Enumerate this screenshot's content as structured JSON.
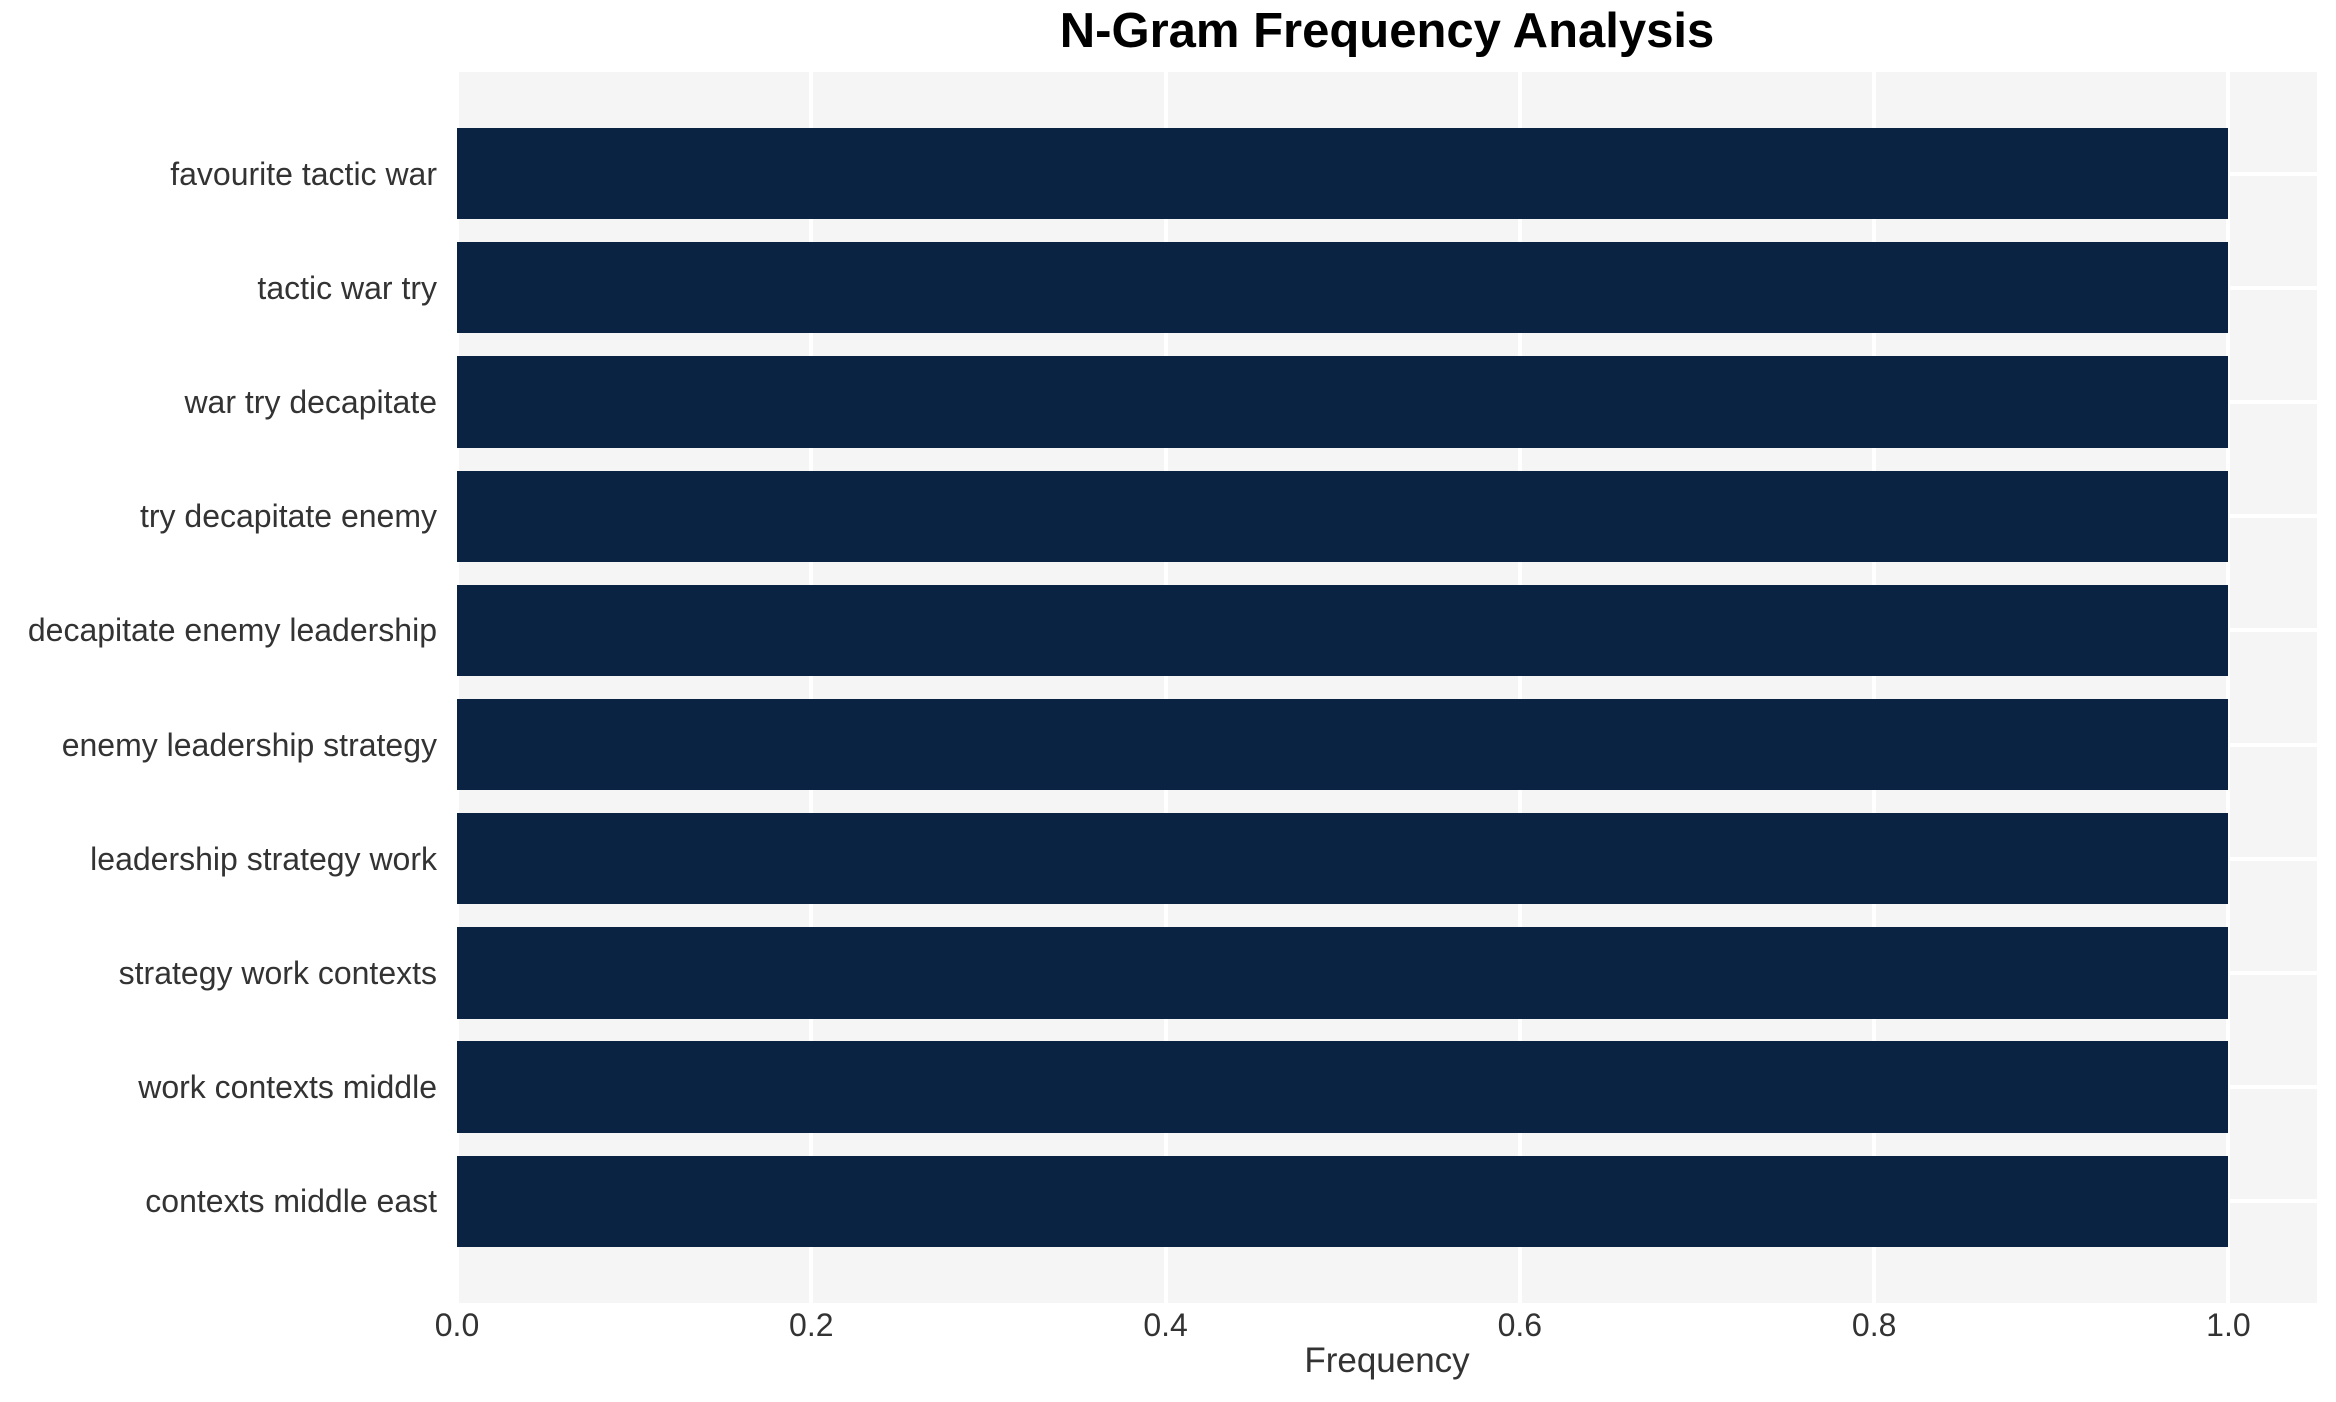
{
  "chart_data": {
    "type": "bar",
    "orientation": "horizontal",
    "title": "N-Gram Frequency Analysis",
    "xlabel": "Frequency",
    "ylabel": "",
    "categories": [
      "favourite tactic war",
      "tactic war try",
      "war try decapitate",
      "try decapitate enemy",
      "decapitate enemy leadership",
      "enemy leadership strategy",
      "leadership strategy work",
      "strategy work contexts",
      "work contexts middle",
      "contexts middle east"
    ],
    "values": [
      1.0,
      1.0,
      1.0,
      1.0,
      1.0,
      1.0,
      1.0,
      1.0,
      1.0,
      1.0
    ],
    "x_ticks": [
      {
        "value": 0.0,
        "label": "0.0"
      },
      {
        "value": 0.2,
        "label": "0.2"
      },
      {
        "value": 0.4,
        "label": "0.4"
      },
      {
        "value": 0.6,
        "label": "0.6"
      },
      {
        "value": 0.8,
        "label": "0.8"
      },
      {
        "value": 1.0,
        "label": "1.0"
      }
    ],
    "xlim": [
      0,
      1.05
    ],
    "grid": true,
    "legend": "none",
    "colors": {
      "bar": "#0a2342",
      "plot_background": "#f5f5f5",
      "figure_background": "#ffffff",
      "gridline": "#ffffff",
      "title_text": "#000000",
      "tick_text": "#333333"
    }
  }
}
